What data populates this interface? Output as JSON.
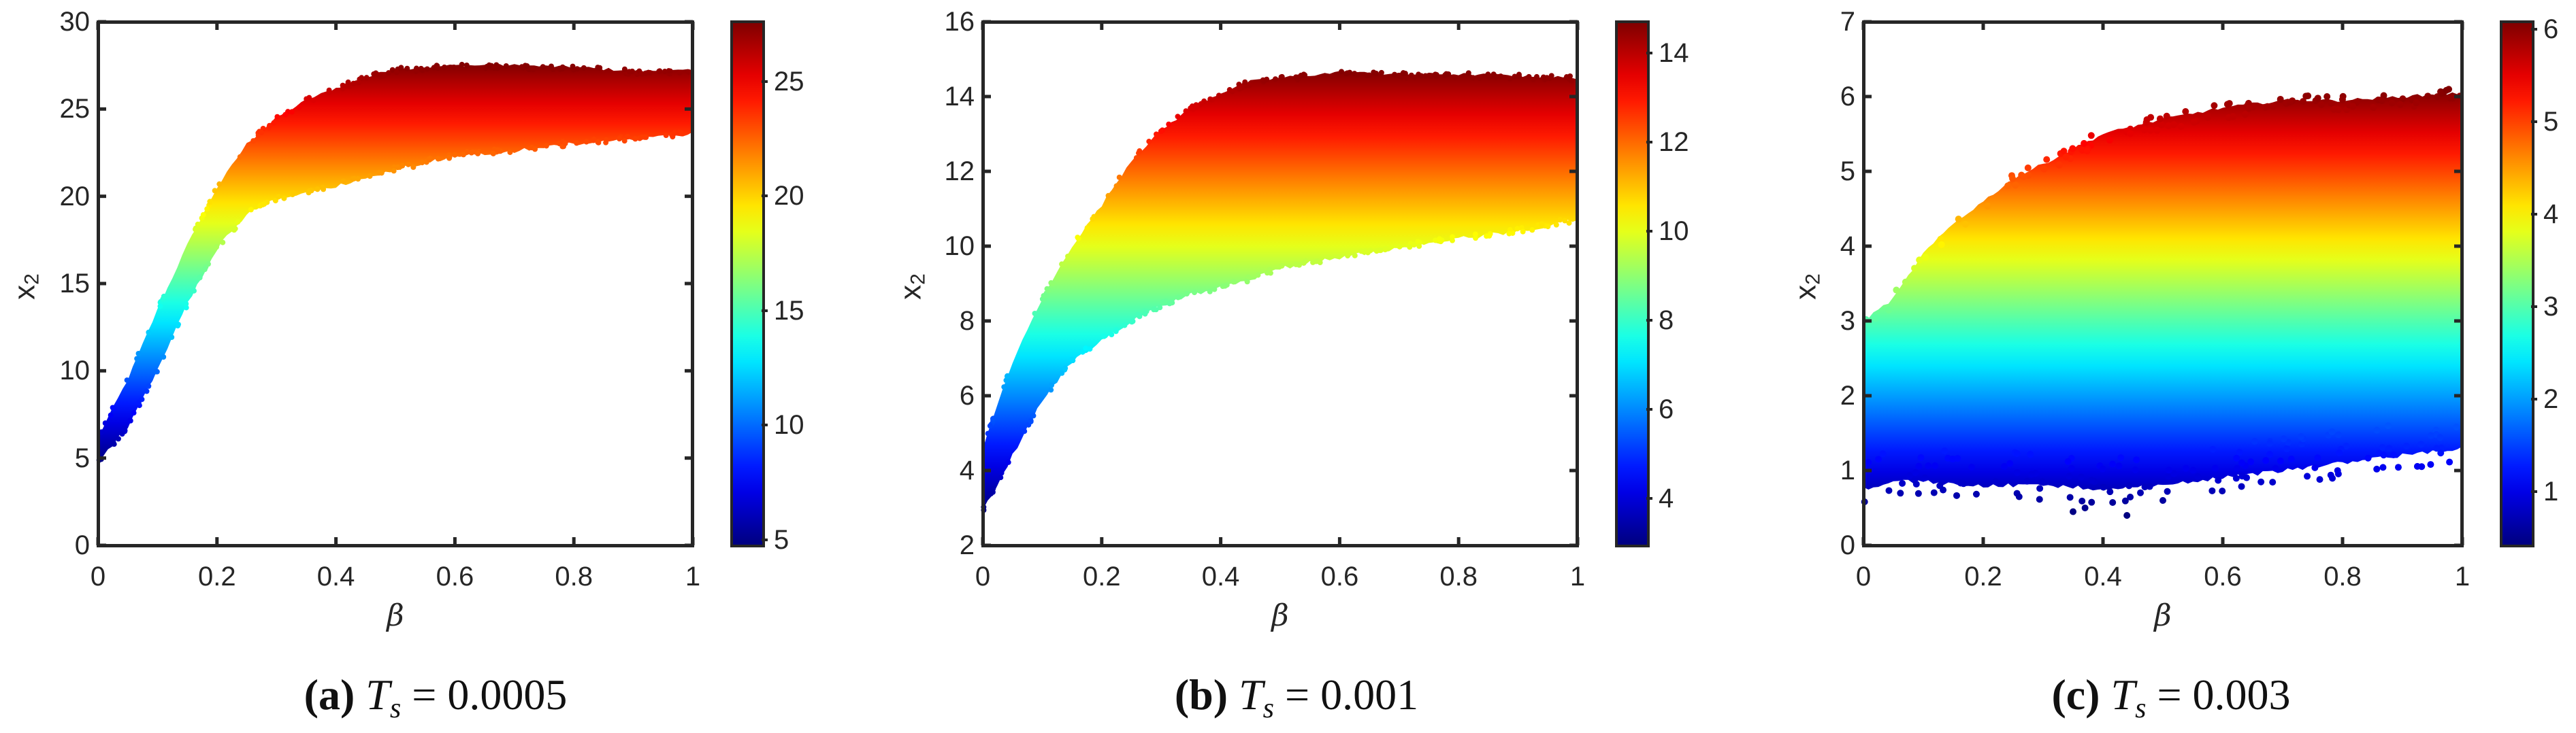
{
  "figure": {
    "panels": [
      {
        "id": "a",
        "caption_tag": "(a)",
        "caption_var": "T",
        "caption_sub": "s",
        "caption_eq": "= 0.0005",
        "xlabel": "β",
        "ylabel": "x",
        "ylabel_sub": "2",
        "xticks": [
          "0",
          "0.2",
          "0.4",
          "0.6",
          "0.8",
          "1"
        ],
        "yticks": [
          "0",
          "5",
          "10",
          "15",
          "20",
          "25",
          "30"
        ],
        "cbar_ticks": [
          "5",
          "10",
          "15",
          "20",
          "25"
        ]
      },
      {
        "id": "b",
        "caption_tag": "(b)",
        "caption_var": "T",
        "caption_sub": "s",
        "caption_eq": "= 0.001",
        "xlabel": "β",
        "ylabel": "x",
        "ylabel_sub": "2",
        "xticks": [
          "0",
          "0.2",
          "0.4",
          "0.6",
          "0.8",
          "1"
        ],
        "yticks": [
          "2",
          "4",
          "6",
          "8",
          "10",
          "12",
          "14",
          "16"
        ],
        "cbar_ticks": [
          "4",
          "6",
          "8",
          "10",
          "12",
          "14"
        ]
      },
      {
        "id": "c",
        "caption_tag": "(c)",
        "caption_var": "T",
        "caption_sub": "s",
        "caption_eq": "= 0.003",
        "xlabel": "β",
        "ylabel": "x",
        "ylabel_sub": "2",
        "xticks": [
          "0",
          "0.2",
          "0.4",
          "0.6",
          "0.8",
          "1"
        ],
        "yticks": [
          "0",
          "1",
          "2",
          "3",
          "4",
          "5",
          "6",
          "7"
        ],
        "cbar_ticks": [
          "1",
          "2",
          "3",
          "4",
          "5",
          "6"
        ]
      }
    ],
    "colormap": "jet"
  },
  "chart_data": [
    {
      "type": "scatter",
      "title": "(a) T_s = 0.0005",
      "xlabel": "β",
      "ylabel": "x_2",
      "xlim": [
        0,
        1
      ],
      "ylim": [
        0,
        30
      ],
      "xticks": [
        0,
        0.2,
        0.4,
        0.6,
        0.8,
        1
      ],
      "yticks": [
        0,
        5,
        10,
        15,
        20,
        25,
        30
      ],
      "colorbar": {
        "colormap": "jet",
        "range": [
          4.75,
          27.6
        ],
        "ticks": [
          5,
          10,
          15,
          20,
          25
        ],
        "encodes": "x_2"
      },
      "grid": false,
      "envelope": {
        "beta": [
          0,
          0.05,
          0.1,
          0.15,
          0.2,
          0.25,
          0.3,
          0.35,
          0.4,
          0.45,
          0.5,
          0.6,
          0.7,
          0.8,
          0.9,
          1.0
        ],
        "upper": [
          6.2,
          9.5,
          13.5,
          17.2,
          20.5,
          23.0,
          24.5,
          25.5,
          26.2,
          26.8,
          27.3,
          27.5,
          27.5,
          27.4,
          27.2,
          27.2
        ],
        "lower": [
          4.8,
          6.8,
          10.0,
          13.8,
          17.0,
          19.0,
          19.8,
          20.2,
          20.6,
          21.0,
          21.5,
          22.3,
          22.6,
          23.0,
          23.3,
          23.6
        ]
      }
    },
    {
      "type": "scatter",
      "title": "(b) T_s = 0.001",
      "xlabel": "β",
      "ylabel": "x_2",
      "xlim": [
        0,
        1
      ],
      "ylim": [
        2,
        16
      ],
      "xticks": [
        0,
        0.2,
        0.4,
        0.6,
        0.8,
        1
      ],
      "yticks": [
        2,
        4,
        6,
        8,
        10,
        12,
        14,
        16
      ],
      "colorbar": {
        "colormap": "jet",
        "range": [
          2.94,
          14.7
        ],
        "ticks": [
          4,
          6,
          8,
          10,
          12,
          14
        ],
        "encodes": "x_2"
      },
      "grid": false,
      "envelope": {
        "beta": [
          0,
          0.05,
          0.1,
          0.15,
          0.2,
          0.25,
          0.3,
          0.35,
          0.4,
          0.45,
          0.5,
          0.6,
          0.7,
          0.8,
          0.9,
          1.0
        ],
        "upper": [
          4.6,
          6.9,
          8.6,
          10.0,
          11.1,
          12.3,
          13.1,
          13.7,
          14.1,
          14.4,
          14.5,
          14.65,
          14.6,
          14.6,
          14.55,
          14.5
        ],
        "lower": [
          2.9,
          4.4,
          5.9,
          6.9,
          7.5,
          8.0,
          8.4,
          8.7,
          8.9,
          9.1,
          9.4,
          9.7,
          9.95,
          10.2,
          10.4,
          10.7
        ]
      }
    },
    {
      "type": "scatter",
      "title": "(c) T_s = 0.003",
      "xlabel": "β",
      "ylabel": "x_2",
      "xlim": [
        0,
        1
      ],
      "ylim": [
        0,
        7
      ],
      "xticks": [
        0,
        0.2,
        0.4,
        0.6,
        0.8,
        1
      ],
      "yticks": [
        0,
        1,
        2,
        3,
        4,
        5,
        6,
        7
      ],
      "colorbar": {
        "colormap": "jet",
        "range": [
          0.42,
          6.08
        ],
        "ticks": [
          1,
          2,
          3,
          4,
          5,
          6
        ],
        "encodes": "x_2"
      },
      "grid": false,
      "envelope": {
        "beta": [
          0,
          0.05,
          0.1,
          0.15,
          0.2,
          0.25,
          0.3,
          0.35,
          0.4,
          0.45,
          0.5,
          0.6,
          0.7,
          0.8,
          0.9,
          1.0
        ],
        "upper": [
          3.0,
          3.3,
          3.9,
          4.3,
          4.6,
          4.9,
          5.1,
          5.3,
          5.5,
          5.6,
          5.7,
          5.85,
          5.95,
          5.95,
          6.0,
          6.05
        ],
        "lower": [
          0.75,
          0.85,
          0.85,
          0.82,
          0.8,
          0.8,
          0.8,
          0.78,
          0.75,
          0.78,
          0.8,
          0.9,
          1.0,
          1.1,
          1.2,
          1.3
        ]
      },
      "outliers": [
        [
          0.35,
          0.45
        ],
        [
          0.37,
          0.5
        ],
        [
          0.44,
          0.4
        ],
        [
          0.26,
          0.65
        ],
        [
          0.5,
          0.6
        ]
      ]
    }
  ]
}
